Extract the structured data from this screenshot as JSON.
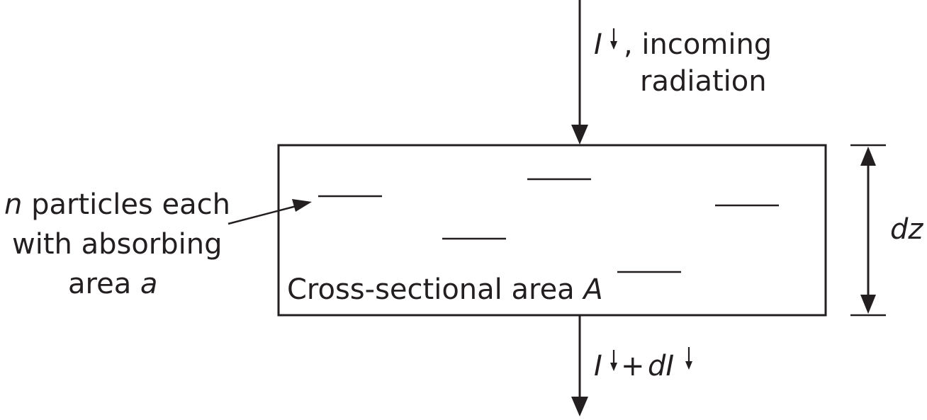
{
  "incoming": {
    "symbol": "I",
    "line1_rest": ", incoming",
    "line2": "radiation"
  },
  "particles_label": {
    "line1_var": "n",
    "line1_rest": " particles each",
    "line2": "with absorbing",
    "line3_text": "area ",
    "line3_var": "a"
  },
  "box_label": {
    "text": "Cross-sectional area ",
    "var": "A"
  },
  "thickness_label": "dz",
  "outgoing": {
    "symbol": "I",
    "plus": "+ ",
    "d_symbol": "dI"
  },
  "colors": {
    "ink": "#231f20",
    "background": "#ffffff"
  }
}
